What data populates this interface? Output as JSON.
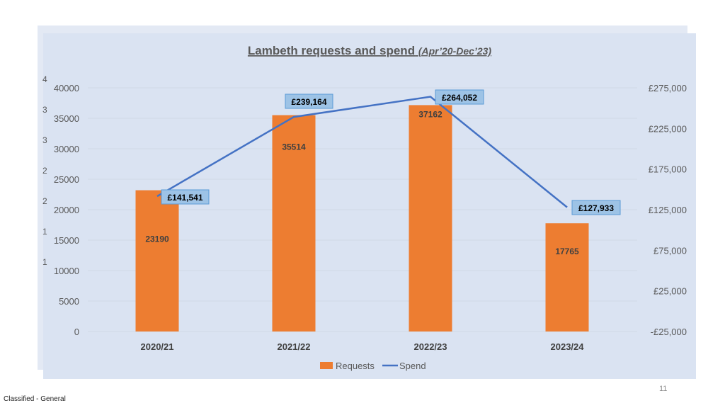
{
  "chart_data": {
    "type": "bar",
    "title": "Lambeth requests and spend",
    "title_suffix": "(Apr’20-Dec’23)",
    "categories": [
      "2020/21",
      "2021/22",
      "2022/23",
      "2023/24"
    ],
    "series": [
      {
        "name": "Requests",
        "type": "bar",
        "axis": "left",
        "color": "#ED7D31",
        "values": [
          23190,
          35514,
          37162,
          17765
        ],
        "labels": [
          "23190",
          "35514",
          "37162",
          "17765"
        ]
      },
      {
        "name": "Spend",
        "type": "line",
        "axis": "right",
        "color": "#4472C4",
        "values": [
          141541,
          239164,
          264052,
          127933
        ],
        "labels": [
          "£141,541",
          "£239,164",
          "£264,052",
          "£127,933"
        ]
      }
    ],
    "y_left": {
      "range": [
        0,
        40000
      ],
      "ticks": [
        0,
        5000,
        10000,
        15000,
        20000,
        25000,
        30000,
        35000,
        40000
      ],
      "tick_labels": [
        "0",
        "5000",
        "10000",
        "15000",
        "20000",
        "25000",
        "30000",
        "35000",
        "40000"
      ]
    },
    "y_right": {
      "range": [
        -25000,
        275000
      ],
      "ticks": [
        -25000,
        25000,
        75000,
        125000,
        175000,
        225000,
        275000
      ],
      "tick_labels": [
        "-£25,000",
        "£25,000",
        "£75,000",
        "£125,000",
        "£175,000",
        "£225,000",
        "£275,000"
      ]
    },
    "background_axis_fragments": [
      "4",
      "3",
      "3",
      "2",
      "2",
      "1",
      "1"
    ],
    "grid": true,
    "legend_position": "bottom"
  },
  "footer": {
    "classification": "Classified - General",
    "slide_number": "11"
  },
  "colors": {
    "panel_bg": "#DAE3F2",
    "panel_back": "#E3E9F4",
    "label_box_bg": "#9DC3E6",
    "label_box_border": "#5B9BD5"
  }
}
